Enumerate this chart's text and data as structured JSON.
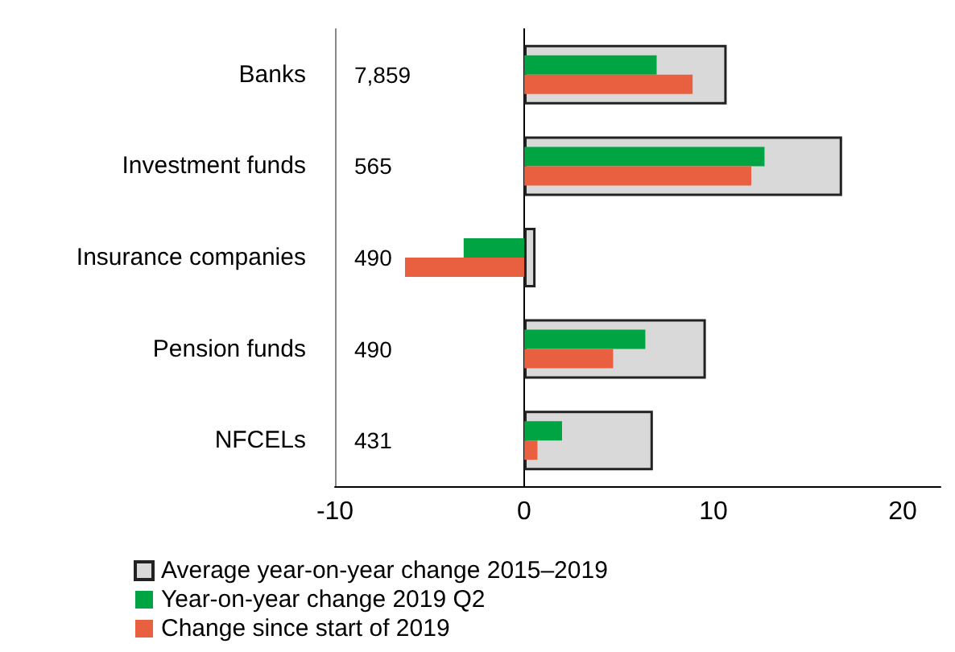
{
  "chart_data": {
    "type": "bar",
    "orientation": "horizontal",
    "categories": [
      "Banks",
      "Investment funds",
      "Insurance companies",
      "Pension funds",
      "NFCELs"
    ],
    "series": [
      {
        "name": "Average year-on-year change 2015–2019",
        "color": "#d9d9d9",
        "values": [
          10.7,
          16.8,
          0.6,
          9.6,
          6.8
        ]
      },
      {
        "name": "Year-on-year change 2019 Q2",
        "color": "#00a443",
        "values": [
          7.0,
          12.7,
          -3.2,
          6.4,
          2.0
        ]
      },
      {
        "name": "Change since start of 2019",
        "color": "#e96040",
        "values": [
          8.9,
          12.0,
          -6.3,
          4.7,
          0.7
        ]
      }
    ],
    "xlim": [
      -10,
      22
    ],
    "xticks": [
      -10,
      0,
      10,
      20
    ],
    "legend": "bottom",
    "annotations": [
      "7,859",
      "565",
      "490",
      "490",
      "431"
    ]
  }
}
